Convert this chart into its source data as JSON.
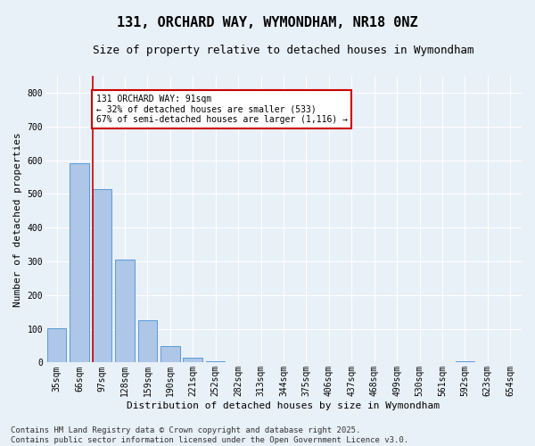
{
  "title": "131, ORCHARD WAY, WYMONDHAM, NR18 0NZ",
  "subtitle": "Size of property relative to detached houses in Wymondham",
  "xlabel": "Distribution of detached houses by size in Wymondham",
  "ylabel": "Number of detached properties",
  "categories": [
    "35sqm",
    "66sqm",
    "97sqm",
    "128sqm",
    "159sqm",
    "190sqm",
    "221sqm",
    "252sqm",
    "282sqm",
    "313sqm",
    "344sqm",
    "375sqm",
    "406sqm",
    "437sqm",
    "468sqm",
    "499sqm",
    "530sqm",
    "561sqm",
    "592sqm",
    "623sqm",
    "654sqm"
  ],
  "values": [
    102,
    590,
    515,
    305,
    125,
    50,
    15,
    5,
    2,
    0,
    0,
    0,
    0,
    0,
    0,
    0,
    0,
    0,
    5,
    0,
    0
  ],
  "bar_color": "#aec6e8",
  "bar_edge_color": "#5b9bd5",
  "vline_color": "#cc0000",
  "annotation_text": "131 ORCHARD WAY: 91sqm\n← 32% of detached houses are smaller (533)\n67% of semi-detached houses are larger (1,116) →",
  "annotation_box_color": "#ffffff",
  "annotation_box_edge_color": "#cc0000",
  "footer_text": "Contains HM Land Registry data © Crown copyright and database right 2025.\nContains public sector information licensed under the Open Government Licence v3.0.",
  "ylim": [
    0,
    850
  ],
  "yticks": [
    0,
    100,
    200,
    300,
    400,
    500,
    600,
    700,
    800
  ],
  "bg_color": "#e8f0f8",
  "grid_color": "#ffffff",
  "title_fontsize": 11,
  "subtitle_fontsize": 9,
  "axis_label_fontsize": 8,
  "tick_fontsize": 7,
  "annotation_fontsize": 7,
  "footer_fontsize": 6.5
}
